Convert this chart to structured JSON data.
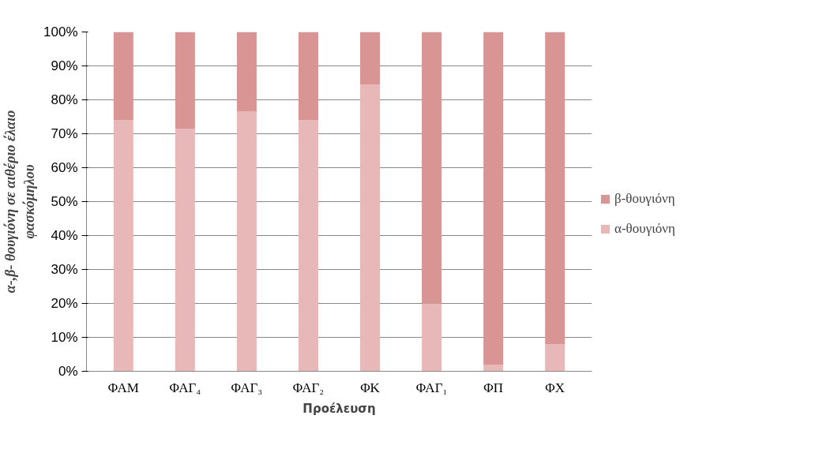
{
  "chart_data": {
    "type": "bar",
    "stacked": true,
    "xlabel": "Προέλευση",
    "ylabel": "α-,β- θουγιόνη σε αιθέριο έλαιο\nφασκόμηλου",
    "categories": [
      "ΦΑΜ",
      "ΦΑΓ₄",
      "ΦΑΓ₃",
      "ΦΑΓ₂",
      "ΦΚ",
      "ΦΑΓ₁",
      "ΦΠ",
      "ΦΧ"
    ],
    "series": [
      {
        "name": "α-θουγιόνη",
        "color": "#e8b7b7",
        "values": [
          74,
          71.5,
          76.5,
          74,
          84.5,
          20,
          2,
          8
        ]
      },
      {
        "name": "β-θουγιόνη",
        "color": "#d99494",
        "values": [
          26,
          28.5,
          23.5,
          26,
          15.5,
          80,
          98,
          92
        ]
      }
    ],
    "ylim": [
      0,
      100
    ],
    "yticks": [
      {
        "value": 0,
        "label": "0%"
      },
      {
        "value": 10,
        "label": "10%"
      },
      {
        "value": 20,
        "label": "20%"
      },
      {
        "value": 30,
        "label": "30%"
      },
      {
        "value": 40,
        "label": "40%"
      },
      {
        "value": 50,
        "label": "50%"
      },
      {
        "value": 60,
        "label": "60%"
      },
      {
        "value": 70,
        "label": "70%"
      },
      {
        "value": 80,
        "label": "80%"
      },
      {
        "value": 90,
        "label": "90%"
      },
      {
        "value": 100,
        "label": "100%"
      }
    ],
    "grid": "y",
    "legend": "right"
  }
}
